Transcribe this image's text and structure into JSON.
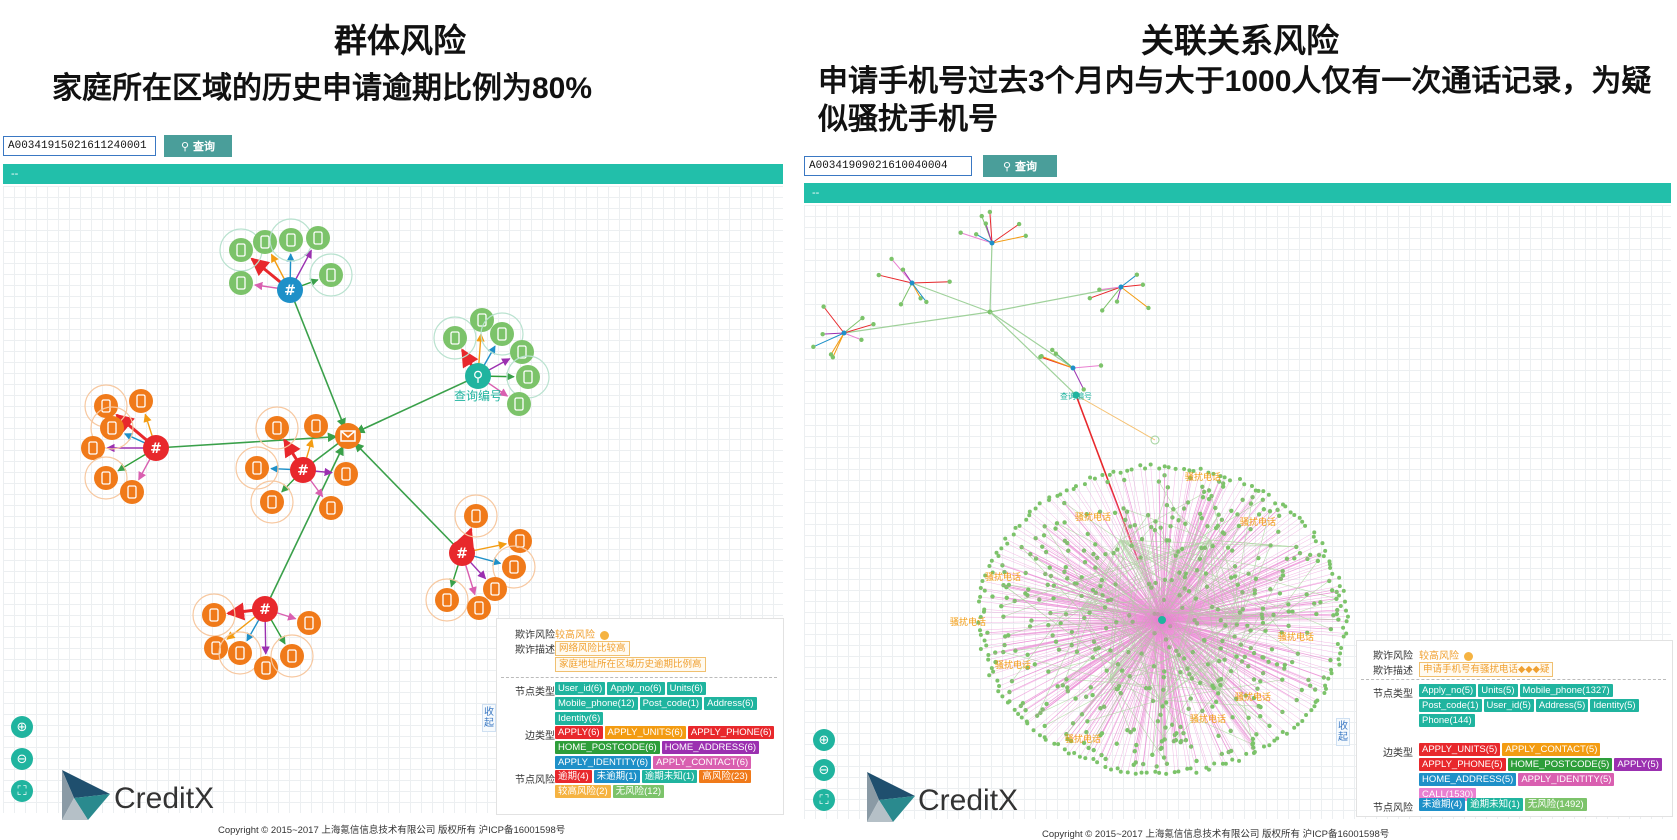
{
  "left": {
    "title": "群体风险",
    "subtitle": "家庭所在区域的历史申请逾期比例为80%",
    "search_value": "A00341915021611240001",
    "search_button": "查询",
    "bar_text": "--",
    "center_label": "查询编号",
    "legend": {
      "fraud_risk_label": "欺诈风险",
      "fraud_risk_value": "较高风险",
      "fraud_desc_label": "欺诈描述",
      "fraud_desc_items": [
        "网络风险比较高",
        "家庭地址所在区域历史逾期比例高"
      ],
      "node_type_label": "节点类型",
      "node_types": [
        {
          "label": "User_id(6)",
          "color": "#20b49f"
        },
        {
          "label": "Apply_no(6)",
          "color": "#20b49f"
        },
        {
          "label": "Units(6)",
          "color": "#20b49f"
        },
        {
          "label": "Mobile_phone(12)",
          "color": "#20b49f"
        },
        {
          "label": "Post_code(1)",
          "color": "#20b49f"
        },
        {
          "label": "Address(6)",
          "color": "#20b49f"
        },
        {
          "label": "Identity(6)",
          "color": "#20b49f"
        }
      ],
      "edge_type_label": "边类型",
      "edge_types": [
        {
          "label": "APPLY(6)",
          "color": "#e8282c"
        },
        {
          "label": "APPLY_UNITS(6)",
          "color": "#f39c12"
        },
        {
          "label": "APPLY_PHONE(6)",
          "color": "#e8282c"
        },
        {
          "label": "HOME_POSTCODE(6)",
          "color": "#2e9e3a"
        },
        {
          "label": "HOME_ADDRESS(6)",
          "color": "#9b30b0"
        },
        {
          "label": "APPLY_IDENTITY(6)",
          "color": "#1e90c8"
        },
        {
          "label": "APPLY_CONTACT(6)",
          "color": "#d95fb0"
        }
      ],
      "node_risk_label": "节点风险",
      "node_risks": [
        {
          "label": "逾期(4)",
          "color": "#e8282c"
        },
        {
          "label": "未逾期(1)",
          "color": "#1e90c8"
        },
        {
          "label": "逾期未知(1)",
          "color": "#20b49f"
        },
        {
          "label": "高风险(23)",
          "color": "#f07a1a"
        },
        {
          "label": "较高风险(2)",
          "color": "#f5b342"
        },
        {
          "label": "无风险(12)",
          "color": "#7cc36a"
        }
      ]
    },
    "side_tab": "收起",
    "copyright": "Copyright © 2015~2017 上海氪信信息技术有限公司 版权所有 沪ICP备16001598号"
  },
  "right": {
    "title": "关联关系风险",
    "subtitle": "申请手机号过去3个月内与大于1000人仅有一次通话记录，为疑似骚扰手机号",
    "search_value": "A00341909021610040004",
    "search_button": "查询",
    "bar_text": "--",
    "center_label": "查询编号",
    "cluster_labels": [
      "骚扰电话",
      "骚扰电话",
      "骚扰电话",
      "骚扰电话",
      "骚扰电话",
      "骚扰电话",
      "骚扰电话",
      "骚扰电话",
      "骚扰电话",
      "骚扰电话"
    ],
    "legend": {
      "fraud_risk_label": "欺诈风险",
      "fraud_risk_value": "较高风险",
      "fraud_desc_label": "欺诈描述",
      "fraud_desc_items": [
        "申请手机号有骚扰电话◆◆◆疑"
      ],
      "node_type_label": "节点类型",
      "node_types": [
        {
          "label": "Apply_no(5)",
          "color": "#20b49f"
        },
        {
          "label": "Units(5)",
          "color": "#20b49f"
        },
        {
          "label": "Mobile_phone(1327)",
          "color": "#20b49f"
        },
        {
          "label": "Post_code(1)",
          "color": "#20b49f"
        },
        {
          "label": "User_id(5)",
          "color": "#20b49f"
        },
        {
          "label": "Address(5)",
          "color": "#20b49f"
        },
        {
          "label": "Identity(5)",
          "color": "#20b49f"
        },
        {
          "label": "Phone(144)",
          "color": "#20b49f"
        }
      ],
      "edge_type_label": "边类型",
      "edge_types": [
        {
          "label": "APPLY_UNITS(5)",
          "color": "#e8282c"
        },
        {
          "label": "APPLY_CONTACT(5)",
          "color": "#f39c12"
        },
        {
          "label": "APPLY_PHONE(5)",
          "color": "#e8282c"
        },
        {
          "label": "HOME_POSTCODE(5)",
          "color": "#2e9e3a"
        },
        {
          "label": "APPLY(5)",
          "color": "#9b30b0"
        },
        {
          "label": "HOME_ADDRESS(5)",
          "color": "#1e90c8"
        },
        {
          "label": "APPLY_IDENTITY(5)",
          "color": "#d95fb0"
        },
        {
          "label": "CALL(1530)",
          "color": "#e97fd0"
        }
      ],
      "node_risk_label": "节点风险",
      "node_risks": [
        {
          "label": "未逾期(4)",
          "color": "#1e90c8"
        },
        {
          "label": "逾期未知(1)",
          "color": "#20b49f"
        },
        {
          "label": "无风险(1492)",
          "color": "#7cc36a"
        }
      ]
    },
    "side_tab": "收起",
    "copyright": "Copyright © 2015~2017 上海氪信信息技术有限公司 版权所有 沪ICP备16001598号"
  },
  "logo_text": "CreditX",
  "colors": {
    "teal": "#22bfaa",
    "search_btn": "#4a9e9a",
    "orange": "#f07a1a",
    "red": "#e8282c",
    "green": "#7cc36a",
    "blue": "#1e90c8",
    "pink": "#e97fd0"
  }
}
